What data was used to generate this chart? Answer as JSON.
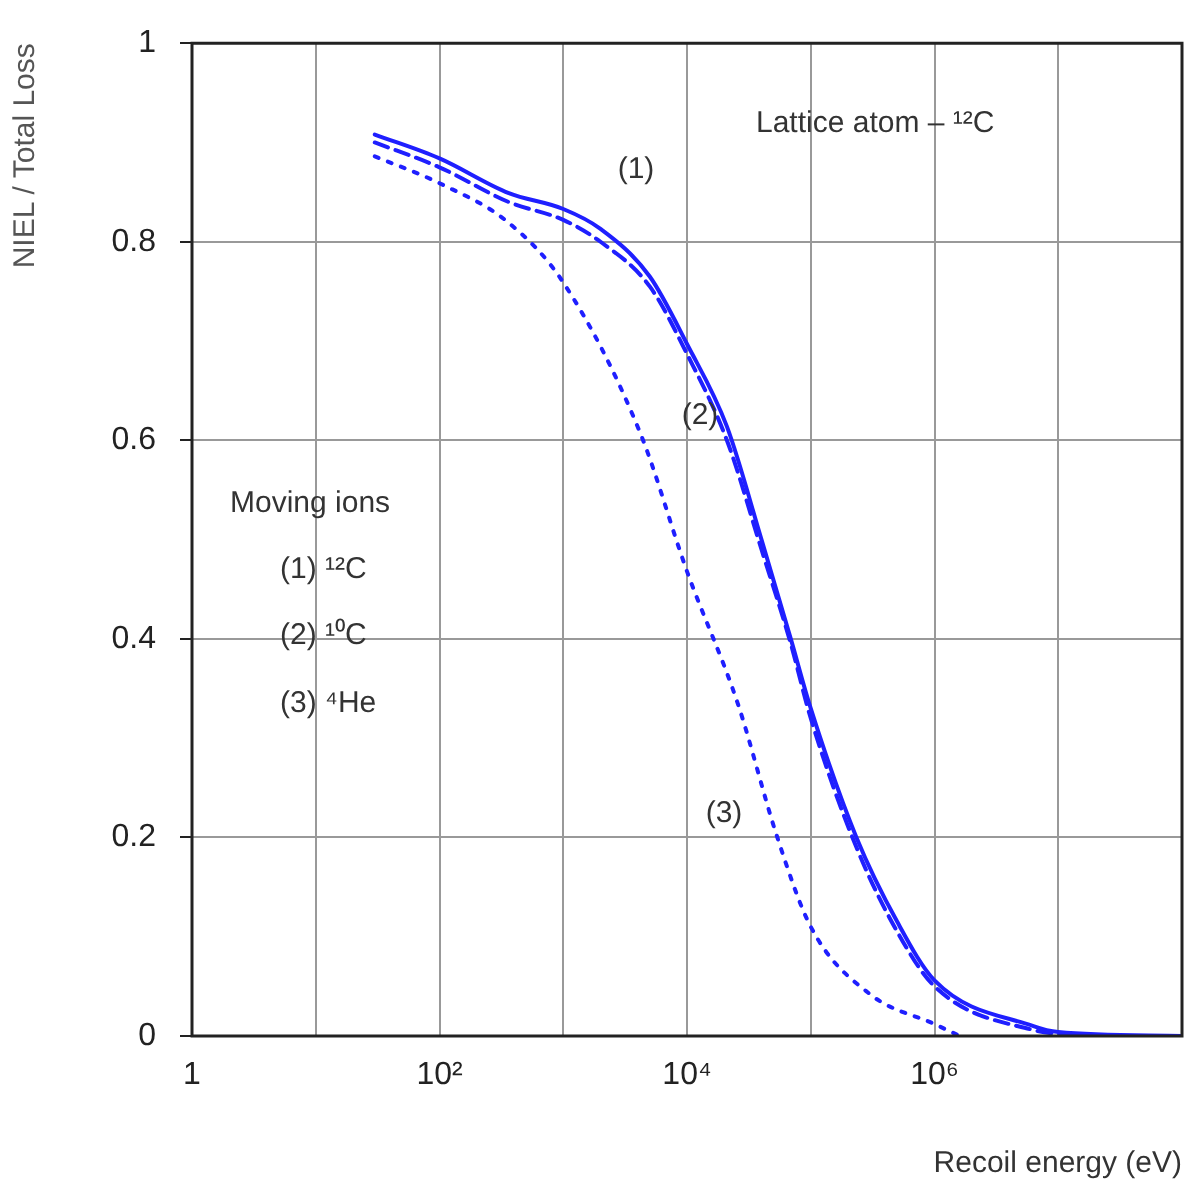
{
  "chart_data": {
    "type": "line",
    "xlabel": "Recoil energy (eV)",
    "ylabel": "NIEL / Total Loss",
    "log": "x",
    "xlim": [
      1,
      100000000
    ],
    "xticks": [
      {
        "value": 1,
        "label": "1"
      },
      {
        "value": 10,
        "label": null
      },
      {
        "value": 100,
        "label": "10²"
      },
      {
        "value": 1000,
        "label": null
      },
      {
        "value": 10000,
        "label": "10⁴"
      },
      {
        "value": 100000,
        "label": null
      },
      {
        "value": 1000000,
        "label": "10⁶"
      },
      {
        "value": 10000000,
        "label": null
      },
      {
        "value": 100000000,
        "label": null
      }
    ],
    "ylim": [
      0,
      1
    ],
    "yticks": [
      0,
      0.2,
      0.4,
      0.6,
      0.8,
      1
    ],
    "grid": true,
    "legend": false,
    "marker": "none",
    "series": [
      {
        "color": "#1f1fff",
        "line_style": "solid",
        "x": [
          30,
          100,
          363,
          1000,
          2000,
          5000,
          10000,
          21000,
          40000,
          69000,
          100000,
          234000,
          500000,
          1000000,
          6300000,
          10000000,
          100000000
        ],
        "values": [
          0.908,
          0.884,
          0.849,
          0.833,
          0.813,
          0.765,
          0.697,
          0.614,
          0.5,
          0.4,
          0.33,
          0.2,
          0.115,
          0.056,
          0.01,
          0.004,
          0
        ]
      },
      {
        "color": "#1f1fff",
        "line_style": "dashed",
        "x": [
          30,
          100,
          363,
          1000,
          2000,
          5000,
          10000,
          21000,
          40000,
          69000,
          100000,
          234000,
          500000,
          1000000,
          6300000,
          20000000
        ],
        "values": [
          0.9,
          0.875,
          0.84,
          0.822,
          0.8,
          0.755,
          0.687,
          0.6,
          0.49,
          0.395,
          0.32,
          0.19,
          0.105,
          0.05,
          0.006,
          0
        ]
      },
      {
        "color": "#1f1fff",
        "line_style": "dotted",
        "x": [
          30,
          100,
          363,
          1000,
          4200,
          10000,
          25700,
          53700,
          100000,
          302000,
          1000000,
          1600000
        ],
        "values": [
          0.886,
          0.859,
          0.819,
          0.759,
          0.607,
          0.468,
          0.335,
          0.2,
          0.11,
          0.042,
          0.012,
          0
        ]
      }
    ],
    "annotations": [
      "(1)",
      "(2)",
      "(3)",
      "Lattice atom – ¹²C",
      "Moving ions",
      "(1) ¹²C",
      "(2) ¹⁰C",
      "(3) ⁴He"
    ]
  }
}
